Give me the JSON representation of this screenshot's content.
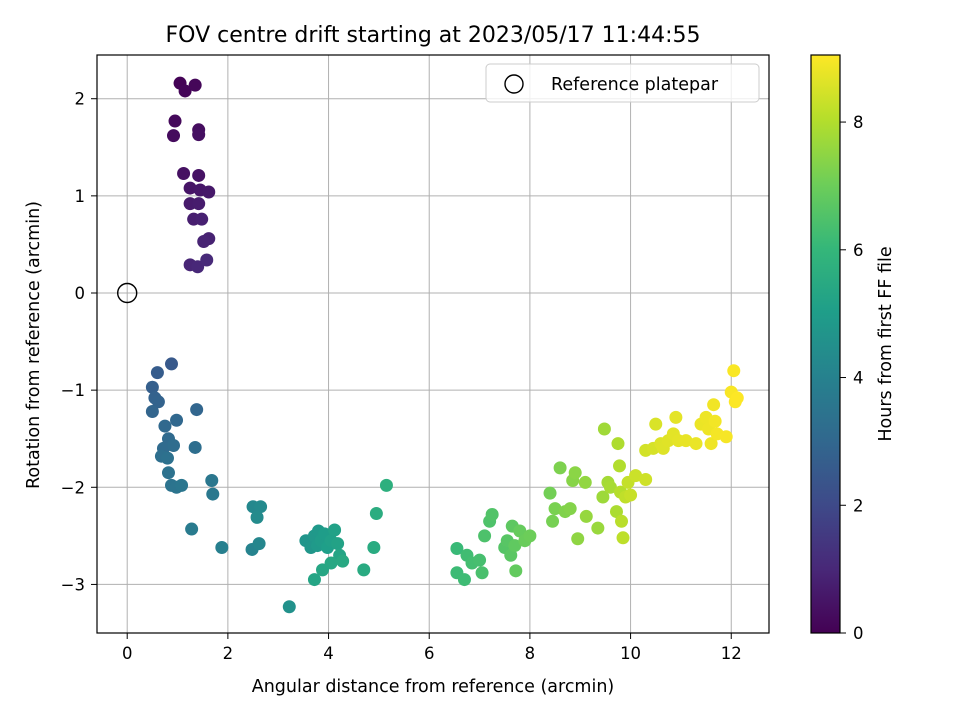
{
  "chart_data": {
    "type": "scatter",
    "title": "FOV centre drift starting at 2023/05/17 11:44:55",
    "xlabel": "Angular distance from reference (arcmin)",
    "ylabel": "Rotation from reference (arcmin)",
    "xlim": [
      -0.6,
      12.75
    ],
    "ylim": [
      -3.5,
      2.45
    ],
    "xticks": [
      0,
      2,
      4,
      6,
      8,
      10,
      12
    ],
    "yticks": [
      -3,
      -2,
      -1,
      0,
      1,
      2
    ],
    "grid": true,
    "legend": {
      "placement": "top-right",
      "entries": [
        "Reference platepar"
      ]
    },
    "reference_point": {
      "x": 0,
      "y": 0,
      "marker": "open-circle"
    },
    "colorbar": {
      "label": "Hours from first FF file",
      "range": [
        0,
        9.05
      ],
      "ticks": [
        0,
        2,
        4,
        6,
        8
      ],
      "colormap": "viridis",
      "stops": [
        "#440154",
        "#482878",
        "#3e4a89",
        "#31688e",
        "#26828e",
        "#1f9e89",
        "#35b779",
        "#6ece58",
        "#b5de2b",
        "#fde725"
      ]
    },
    "points": [
      {
        "x": 1.05,
        "y": 2.16,
        "t": 0.05
      },
      {
        "x": 1.15,
        "y": 2.08,
        "t": 0.1
      },
      {
        "x": 1.35,
        "y": 2.14,
        "t": 0.15
      },
      {
        "x": 0.95,
        "y": 1.77,
        "t": 0.2
      },
      {
        "x": 0.92,
        "y": 1.62,
        "t": 0.25
      },
      {
        "x": 1.42,
        "y": 1.68,
        "t": 0.3
      },
      {
        "x": 1.42,
        "y": 1.63,
        "t": 0.35
      },
      {
        "x": 1.12,
        "y": 1.23,
        "t": 0.4
      },
      {
        "x": 1.42,
        "y": 1.21,
        "t": 0.45
      },
      {
        "x": 1.25,
        "y": 1.08,
        "t": 0.5
      },
      {
        "x": 1.45,
        "y": 1.06,
        "t": 0.55
      },
      {
        "x": 1.62,
        "y": 1.04,
        "t": 0.6
      },
      {
        "x": 1.25,
        "y": 0.92,
        "t": 0.65
      },
      {
        "x": 1.42,
        "y": 0.92,
        "t": 0.7
      },
      {
        "x": 1.32,
        "y": 0.76,
        "t": 0.75
      },
      {
        "x": 1.48,
        "y": 0.76,
        "t": 0.8
      },
      {
        "x": 1.62,
        "y": 0.56,
        "t": 0.85
      },
      {
        "x": 1.52,
        "y": 0.53,
        "t": 0.9
      },
      {
        "x": 1.25,
        "y": 0.29,
        "t": 0.95
      },
      {
        "x": 1.4,
        "y": 0.27,
        "t": 1.0
      },
      {
        "x": 1.58,
        "y": 0.34,
        "t": 1.05
      },
      {
        "x": 0.88,
        "y": -0.73,
        "t": 2.5
      },
      {
        "x": 0.6,
        "y": -0.82,
        "t": 2.6
      },
      {
        "x": 0.5,
        "y": -0.97,
        "t": 2.7
      },
      {
        "x": 0.55,
        "y": -1.08,
        "t": 2.8
      },
      {
        "x": 0.62,
        "y": -1.12,
        "t": 2.85
      },
      {
        "x": 0.5,
        "y": -1.22,
        "t": 2.9
      },
      {
        "x": 1.38,
        "y": -1.2,
        "t": 2.95
      },
      {
        "x": 0.98,
        "y": -1.31,
        "t": 3.0
      },
      {
        "x": 0.75,
        "y": -1.37,
        "t": 3.05
      },
      {
        "x": 0.82,
        "y": -1.5,
        "t": 3.1
      },
      {
        "x": 0.72,
        "y": -1.6,
        "t": 3.15
      },
      {
        "x": 0.92,
        "y": -1.57,
        "t": 3.2
      },
      {
        "x": 1.35,
        "y": -1.59,
        "t": 3.25
      },
      {
        "x": 0.68,
        "y": -1.68,
        "t": 3.3
      },
      {
        "x": 0.8,
        "y": -1.7,
        "t": 3.35
      },
      {
        "x": 0.82,
        "y": -1.85,
        "t": 3.4
      },
      {
        "x": 0.88,
        "y": -1.98,
        "t": 3.45
      },
      {
        "x": 0.98,
        "y": -2.0,
        "t": 3.5
      },
      {
        "x": 1.08,
        "y": -1.98,
        "t": 3.55
      },
      {
        "x": 1.68,
        "y": -1.93,
        "t": 3.6
      },
      {
        "x": 1.7,
        "y": -2.07,
        "t": 3.65
      },
      {
        "x": 1.28,
        "y": -2.43,
        "t": 3.75
      },
      {
        "x": 1.88,
        "y": -2.62,
        "t": 3.9
      },
      {
        "x": 2.48,
        "y": -2.64,
        "t": 4.05
      },
      {
        "x": 2.62,
        "y": -2.58,
        "t": 4.15
      },
      {
        "x": 2.5,
        "y": -2.2,
        "t": 4.25
      },
      {
        "x": 2.65,
        "y": -2.2,
        "t": 4.3
      },
      {
        "x": 2.58,
        "y": -2.31,
        "t": 4.35
      },
      {
        "x": 3.22,
        "y": -3.23,
        "t": 4.55
      },
      {
        "x": 3.55,
        "y": -2.55,
        "t": 4.7
      },
      {
        "x": 3.65,
        "y": -2.62,
        "t": 4.75
      },
      {
        "x": 3.72,
        "y": -2.5,
        "t": 4.8
      },
      {
        "x": 3.8,
        "y": -2.45,
        "t": 4.85
      },
      {
        "x": 3.78,
        "y": -2.6,
        "t": 4.9
      },
      {
        "x": 3.85,
        "y": -2.55,
        "t": 4.95
      },
      {
        "x": 3.92,
        "y": -2.48,
        "t": 5.0
      },
      {
        "x": 3.98,
        "y": -2.62,
        "t": 5.05
      },
      {
        "x": 4.05,
        "y": -2.55,
        "t": 5.1
      },
      {
        "x": 4.12,
        "y": -2.44,
        "t": 5.15
      },
      {
        "x": 4.18,
        "y": -2.58,
        "t": 5.2
      },
      {
        "x": 4.22,
        "y": -2.7,
        "t": 5.25
      },
      {
        "x": 3.72,
        "y": -2.95,
        "t": 5.3
      },
      {
        "x": 3.88,
        "y": -2.85,
        "t": 5.35
      },
      {
        "x": 4.05,
        "y": -2.78,
        "t": 5.4
      },
      {
        "x": 4.28,
        "y": -2.76,
        "t": 5.45
      },
      {
        "x": 4.7,
        "y": -2.85,
        "t": 5.5
      },
      {
        "x": 4.9,
        "y": -2.62,
        "t": 5.55
      },
      {
        "x": 4.95,
        "y": -2.27,
        "t": 5.6
      },
      {
        "x": 5.15,
        "y": -1.98,
        "t": 5.7
      },
      {
        "x": 6.55,
        "y": -2.63,
        "t": 6.1
      },
      {
        "x": 6.55,
        "y": -2.88,
        "t": 6.15
      },
      {
        "x": 6.7,
        "y": -2.95,
        "t": 6.2
      },
      {
        "x": 6.75,
        "y": -2.7,
        "t": 6.25
      },
      {
        "x": 6.85,
        "y": -2.78,
        "t": 6.3
      },
      {
        "x": 7.0,
        "y": -2.75,
        "t": 6.35
      },
      {
        "x": 7.05,
        "y": -2.88,
        "t": 6.4
      },
      {
        "x": 7.1,
        "y": -2.5,
        "t": 6.45
      },
      {
        "x": 7.2,
        "y": -2.35,
        "t": 6.5
      },
      {
        "x": 7.25,
        "y": -2.28,
        "t": 6.55
      },
      {
        "x": 7.5,
        "y": -2.62,
        "t": 6.6
      },
      {
        "x": 7.55,
        "y": -2.55,
        "t": 6.65
      },
      {
        "x": 7.62,
        "y": -2.7,
        "t": 6.7
      },
      {
        "x": 7.65,
        "y": -2.4,
        "t": 6.75
      },
      {
        "x": 7.7,
        "y": -2.6,
        "t": 6.8
      },
      {
        "x": 7.72,
        "y": -2.86,
        "t": 6.85
      },
      {
        "x": 7.8,
        "y": -2.45,
        "t": 6.9
      },
      {
        "x": 7.9,
        "y": -2.55,
        "t": 6.95
      },
      {
        "x": 8.0,
        "y": -2.5,
        "t": 7.0
      },
      {
        "x": 8.4,
        "y": -2.06,
        "t": 7.1
      },
      {
        "x": 8.45,
        "y": -2.35,
        "t": 7.15
      },
      {
        "x": 8.5,
        "y": -2.22,
        "t": 7.2
      },
      {
        "x": 8.6,
        "y": -1.8,
        "t": 7.25
      },
      {
        "x": 8.7,
        "y": -2.25,
        "t": 7.3
      },
      {
        "x": 8.8,
        "y": -2.22,
        "t": 7.35
      },
      {
        "x": 8.85,
        "y": -1.93,
        "t": 7.4
      },
      {
        "x": 8.9,
        "y": -1.85,
        "t": 7.45
      },
      {
        "x": 8.95,
        "y": -2.53,
        "t": 7.5
      },
      {
        "x": 9.1,
        "y": -1.95,
        "t": 7.55
      },
      {
        "x": 9.12,
        "y": -2.3,
        "t": 7.6
      },
      {
        "x": 9.35,
        "y": -2.42,
        "t": 7.65
      },
      {
        "x": 9.45,
        "y": -2.1,
        "t": 7.7
      },
      {
        "x": 9.48,
        "y": -1.4,
        "t": 7.75
      },
      {
        "x": 9.55,
        "y": -1.95,
        "t": 7.8
      },
      {
        "x": 9.6,
        "y": -2.0,
        "t": 7.85
      },
      {
        "x": 9.72,
        "y": -2.25,
        "t": 7.9
      },
      {
        "x": 9.75,
        "y": -1.55,
        "t": 7.95
      },
      {
        "x": 9.78,
        "y": -1.78,
        "t": 8.0
      },
      {
        "x": 9.8,
        "y": -2.05,
        "t": 8.05
      },
      {
        "x": 9.82,
        "y": -2.35,
        "t": 8.1
      },
      {
        "x": 9.85,
        "y": -2.52,
        "t": 8.15
      },
      {
        "x": 9.9,
        "y": -2.1,
        "t": 8.2
      },
      {
        "x": 9.95,
        "y": -1.95,
        "t": 8.25
      },
      {
        "x": 10.0,
        "y": -2.08,
        "t": 8.3
      },
      {
        "x": 10.1,
        "y": -1.88,
        "t": 8.35
      },
      {
        "x": 10.3,
        "y": -1.92,
        "t": 8.4
      },
      {
        "x": 10.3,
        "y": -1.62,
        "t": 8.45
      },
      {
        "x": 10.45,
        "y": -1.6,
        "t": 8.5
      },
      {
        "x": 10.5,
        "y": -1.35,
        "t": 8.55
      },
      {
        "x": 10.6,
        "y": -1.55,
        "t": 8.6
      },
      {
        "x": 10.65,
        "y": -1.6,
        "t": 8.62
      },
      {
        "x": 10.75,
        "y": -1.52,
        "t": 8.65
      },
      {
        "x": 10.85,
        "y": -1.45,
        "t": 8.68
      },
      {
        "x": 10.9,
        "y": -1.28,
        "t": 8.7
      },
      {
        "x": 10.95,
        "y": -1.52,
        "t": 8.72
      },
      {
        "x": 11.1,
        "y": -1.52,
        "t": 8.75
      },
      {
        "x": 11.3,
        "y": -1.55,
        "t": 8.78
      },
      {
        "x": 11.4,
        "y": -1.35,
        "t": 8.8
      },
      {
        "x": 11.5,
        "y": -1.28,
        "t": 8.82
      },
      {
        "x": 11.55,
        "y": -1.4,
        "t": 8.84
      },
      {
        "x": 11.6,
        "y": -1.55,
        "t": 8.86
      },
      {
        "x": 11.65,
        "y": -1.15,
        "t": 8.88
      },
      {
        "x": 11.68,
        "y": -1.32,
        "t": 8.9
      },
      {
        "x": 11.72,
        "y": -1.45,
        "t": 8.92
      },
      {
        "x": 11.9,
        "y": -1.48,
        "t": 8.95
      },
      {
        "x": 12.0,
        "y": -1.02,
        "t": 8.98
      },
      {
        "x": 12.05,
        "y": -0.8,
        "t": 9.0
      },
      {
        "x": 12.08,
        "y": -1.12,
        "t": 9.02
      },
      {
        "x": 12.12,
        "y": -1.08,
        "t": 9.04
      }
    ]
  }
}
